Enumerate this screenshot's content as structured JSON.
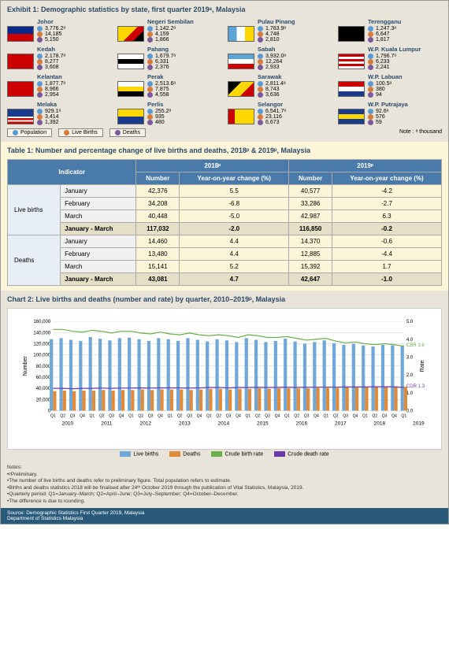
{
  "exhibit": {
    "title": "Exhibit 1: Demographic statistics by state, first quarter 2019ᵃ,  Malaysia",
    "note": "Note : ᵃ thousand",
    "legend": [
      "Population",
      "Live Births",
      "Deaths"
    ],
    "states": [
      {
        "n": "Johor",
        "f": {
          "bg": "linear-gradient(to bottom,#0a2a8a 50%,#c00 50%)"
        },
        "v": [
          "3,776.2ᵃ",
          "14,185",
          "5,150"
        ]
      },
      {
        "n": "Negeri Sembilan",
        "f": {
          "bg": "linear-gradient(135deg,#ffd700 50%,#c00 0,#c00 75%,#000 0)"
        },
        "v": [
          "1,142.2ᵃ",
          "4,159",
          "1,866"
        ]
      },
      {
        "n": "Pulau Pinang",
        "f": {
          "bg": "linear-gradient(to right,#5aa5d5 33%,#fff 33%,#fff 66%,#ffd700 66%)"
        },
        "v": [
          "1,783.9ᵃ",
          "4,748",
          "2,810"
        ]
      },
      {
        "n": "Terengganu",
        "f": {
          "bg": "#000"
        },
        "v": [
          "1,247.3ᵃ",
          "6,647",
          "1,817"
        ]
      },
      {
        "n": "Kedah",
        "f": {
          "bg": "#c00"
        },
        "v": [
          "2,178.7ᵃ",
          "8,277",
          "3,608"
        ]
      },
      {
        "n": "Pahang",
        "f": {
          "bg": "linear-gradient(to bottom,#fff 33%,#000 33%,#000 66%,#fff 66%)"
        },
        "v": [
          "1,679.7ᵃ",
          "6,331",
          "2,376"
        ]
      },
      {
        "n": "Sabah",
        "f": {
          "bg": "linear-gradient(to bottom,#5aa5d5 33%,#fff 33%,#fff 66%,#c00 66%)"
        },
        "v": [
          "3,932.0ᵃ",
          "12,264",
          "2,933"
        ]
      },
      {
        "n": "W.P. Kuala Lumpur",
        "f": {
          "bg": "repeating-linear-gradient(to bottom,#c00 0 3px,#fff 3px 6px)"
        },
        "v": [
          "1,796.7ᵃ",
          "6,233",
          "2,241"
        ]
      },
      {
        "n": "Kelantan",
        "f": {
          "bg": "#c00"
        },
        "v": [
          "1,877.7ᵃ",
          "8,966",
          "2,954"
        ]
      },
      {
        "n": "Perak",
        "f": {
          "bg": "linear-gradient(to bottom,#fff 33%,#ffd700 33%,#ffd700 66%,#000 66%)"
        },
        "v": [
          "2,513.6ᵃ",
          "7,875",
          "4,558"
        ]
      },
      {
        "n": "Sarawak",
        "f": {
          "bg": "linear-gradient(135deg,#000 33%,#ffd700 33%,#ffd700 66%,#c00 66%)"
        },
        "v": [
          "2,811.4ᵃ",
          "8,743",
          "3,636"
        ]
      },
      {
        "n": "W.P. Labuan",
        "f": {
          "bg": "linear-gradient(to bottom,#c00 33%,#fff 33%,#fff 66%,#1a3a8a 66%)"
        },
        "v": [
          "100.5ᵃ",
          "380",
          "94"
        ]
      },
      {
        "n": "Melaka",
        "f": {
          "bg": "linear-gradient(to bottom,#1a3a8a 50%,#fff 0,#fff 62%,#c00 0,#c00 75%,#fff 0,#fff 87%,#c00 0)"
        },
        "v": [
          "929.1ᵃ",
          "3,414",
          "1,392"
        ]
      },
      {
        "n": "Perlis",
        "f": {
          "bg": "linear-gradient(to bottom,#ffd700 50%,#1a3a8a 50%)"
        },
        "v": [
          "255.2ᵃ",
          "935",
          "480"
        ]
      },
      {
        "n": "Selangor",
        "f": {
          "bg": "linear-gradient(to right,#c00 25%,#ffd700 25%)"
        },
        "v": [
          "6,541.7ᵃ",
          "23,116",
          "6,673"
        ]
      },
      {
        "n": "W.P. Putrajaya",
        "f": {
          "bg": "linear-gradient(to bottom,#1a3a8a 33%,#ffd700 33%,#ffd700 66%,#1a3a8a 66%)"
        },
        "v": [
          "92.6ᵃ",
          "576",
          "59"
        ]
      }
    ]
  },
  "table": {
    "title": "Table 1: Number and percentage change of live births and deaths, 2018ᵖ  & 2019ᵖ,  Malaysia",
    "head": {
      "ind": "Indicator",
      "y1": "2018ᵖ",
      "y2": "2019ᵖ",
      "num": "Number",
      "yoy": "Year-on-year change (%)"
    },
    "groups": [
      {
        "g": "Live births",
        "rows": [
          {
            "m": "January",
            "a": "42,376",
            "b": "5.5",
            "c": "40,577",
            "d": "-4.2"
          },
          {
            "m": "February",
            "a": "34,208",
            "b": "-6.8",
            "c": "33,286",
            "d": "-2.7"
          },
          {
            "m": "March",
            "a": "40,448",
            "b": "-5.0",
            "c": "42,987",
            "d": "6.3"
          },
          {
            "m": "January - March",
            "a": "117,032",
            "b": "-2.0",
            "c": "116,850",
            "d": "-0.2",
            "tot": true
          }
        ]
      },
      {
        "g": "Deaths",
        "rows": [
          {
            "m": "January",
            "a": "14,460",
            "b": "4.4",
            "c": "14,370",
            "d": "-0.6"
          },
          {
            "m": "February",
            "a": "13,480",
            "b": "4.4",
            "c": "12,885",
            "d": "-4.4"
          },
          {
            "m": "March",
            "a": "15,141",
            "b": "5.2",
            "c": "15,392",
            "d": "1.7"
          },
          {
            "m": "January - March",
            "a": "43,081",
            "b": "4.7",
            "c": "42,647",
            "d": "-1.0",
            "tot": true
          }
        ]
      }
    ]
  },
  "chart": {
    "title": "Chart 2: Live births and deaths (number and rate) by quarter, 2010–2019ᵖ,  Malaysia",
    "ylabel": "Number",
    "y2label": "Rate",
    "ylim": [
      0,
      160000
    ],
    "ytick": 20000,
    "y2lim": [
      0,
      5.0
    ],
    "y2tick": 1.0,
    "years": [
      "2010",
      "2011",
      "2012",
      "2013",
      "2014",
      "2015",
      "2016",
      "2017",
      "2018",
      "2019"
    ],
    "cbr_label": "CBR 3.6",
    "cdr_label": "CDR 1.3",
    "colors": {
      "lb": "#6fa8d8",
      "d": "#e08a3a",
      "cbr": "#6ab04a",
      "cdr": "#6a3aaa",
      "grid": "#d0d0d0"
    },
    "series": {
      "lb": [
        128000,
        130000,
        127000,
        125000,
        132000,
        129000,
        126000,
        130000,
        131000,
        128000,
        125000,
        130000,
        128000,
        125000,
        130000,
        127000,
        124000,
        128000,
        126000,
        123000,
        130000,
        127000,
        123000,
        125000,
        129000,
        124000,
        120000,
        123000,
        126000,
        121000,
        118000,
        120000,
        117000,
        115000,
        118000,
        117000,
        117000
      ],
      "d": [
        35000,
        36000,
        35000,
        36000,
        36000,
        37000,
        36000,
        37000,
        37000,
        38000,
        37000,
        38000,
        38000,
        38000,
        37000,
        38000,
        39000,
        39000,
        38000,
        39000,
        39000,
        40000,
        39000,
        40000,
        40000,
        40000,
        40000,
        41000,
        41000,
        41000,
        42000,
        42000,
        42000,
        43000,
        43000,
        43000,
        43000
      ],
      "cbr": [
        4.55,
        4.55,
        4.45,
        4.4,
        4.5,
        4.45,
        4.35,
        4.45,
        4.45,
        4.35,
        4.3,
        4.4,
        4.3,
        4.25,
        4.35,
        4.25,
        4.2,
        4.25,
        4.2,
        4.1,
        4.25,
        4.2,
        4.1,
        4.1,
        4.15,
        4.05,
        3.95,
        4.0,
        4.05,
        3.9,
        3.8,
        3.85,
        3.75,
        3.7,
        3.75,
        3.7,
        3.6
      ],
      "cdr": [
        1.25,
        1.25,
        1.23,
        1.25,
        1.25,
        1.27,
        1.25,
        1.27,
        1.27,
        1.28,
        1.27,
        1.28,
        1.28,
        1.28,
        1.27,
        1.28,
        1.3,
        1.3,
        1.28,
        1.3,
        1.3,
        1.31,
        1.3,
        1.31,
        1.31,
        1.31,
        1.31,
        1.32,
        1.32,
        1.32,
        1.33,
        1.33,
        1.33,
        1.34,
        1.34,
        1.34,
        1.3
      ]
    },
    "legend": [
      "Live births",
      "Deaths",
      "Crude birth rate",
      "Crude death rate"
    ]
  },
  "notes": {
    "h": "Notes:",
    "lines": [
      "•ᵖPreliminary.",
      "•The number of live births and deaths refer to preliminary figure. Total population refers to estimate.",
      "•Births and deaths statistics 2018 will be finalised after 24ᵗʰ October 2019 through the publication of Vital Statistics, Malaysia, 2019.",
      "•Quarterly period: Q1=January–March; Q2=April–June; Q3=July–September; Q4=October–December.",
      "•The difference is due to rounding."
    ]
  },
  "source": "Source: Demographic Statistics First Quarter 2019, Malaysia\n             Department of Statistics Malaysia"
}
